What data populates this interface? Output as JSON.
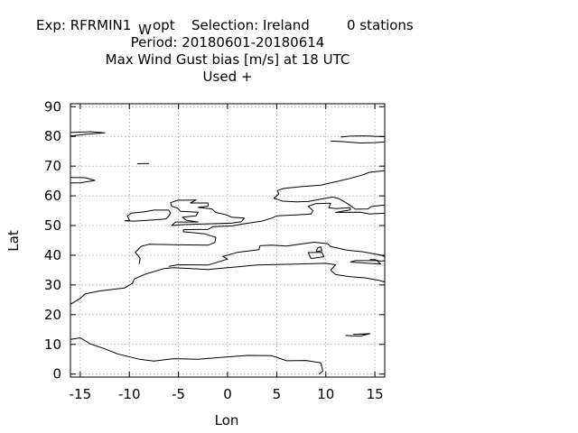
{
  "chart_data": {
    "type": "scatter",
    "title": {
      "line1": {
        "exp_prefix": "Exp: RFRMIN1",
        "exp_subscript": "W",
        "exp_suffix": "opt",
        "selection": "Selection: Ireland",
        "stations": "0 stations"
      },
      "line2": "Period: 20180601-20180614",
      "line3": "Max Wind Gust bias [m/s] at  18 UTC",
      "line4": "Used   +"
    },
    "xlabel": "Lon",
    "ylabel": "Lat",
    "xlim": [
      -16,
      16
    ],
    "ylim": [
      -1,
      91
    ],
    "x_ticks": [
      -15,
      -10,
      -5,
      0,
      5,
      10,
      15
    ],
    "y_ticks": [
      0,
      10,
      20,
      30,
      40,
      50,
      60,
      70,
      80,
      90
    ],
    "x_tick_labels": [
      "-15",
      "-10",
      "-5",
      "0",
      "5",
      "10",
      "15"
    ],
    "y_tick_labels": [
      "0",
      "10",
      "20",
      "30",
      "40",
      "50",
      "60",
      "70",
      "80",
      "90"
    ],
    "grid": true,
    "points": [],
    "coastlines": [
      [
        [
          -16,
          81.3
        ],
        [
          -14,
          81.6
        ],
        [
          -12.5,
          81.2
        ],
        [
          -14.5,
          80.7
        ],
        [
          -16,
          80.1
        ]
      ],
      [
        [
          -16,
          66.2
        ],
        [
          -14.5,
          66.1
        ],
        [
          -13.5,
          65.2
        ],
        [
          -15,
          64.4
        ],
        [
          -16,
          64.3
        ]
      ],
      [
        [
          -16,
          11.7
        ],
        [
          -15,
          12.2
        ],
        [
          -14,
          10.2
        ],
        [
          -12.5,
          8.5
        ],
        [
          -11.2,
          6.8
        ],
        [
          -9,
          5
        ],
        [
          -7.5,
          4.4
        ],
        [
          -5.5,
          5.2
        ],
        [
          -3,
          5
        ],
        [
          0,
          5.8
        ],
        [
          2,
          6.3
        ],
        [
          4.5,
          6.2
        ],
        [
          6,
          4.5
        ],
        [
          8,
          4.6
        ],
        [
          9.5,
          3.8
        ],
        [
          9.7,
          1
        ],
        [
          9.3,
          0
        ]
      ],
      [
        [
          -16,
          23.5
        ],
        [
          -15,
          25.5
        ],
        [
          -14.5,
          27
        ],
        [
          -13,
          28
        ],
        [
          -10.5,
          29
        ],
        [
          -9.7,
          30.5
        ],
        [
          -9.5,
          32
        ],
        [
          -8.5,
          33.5
        ],
        [
          -6.5,
          35.5
        ],
        [
          -5.5,
          35.8
        ],
        [
          -2,
          35.2
        ],
        [
          0,
          35.8
        ],
        [
          3,
          36.7
        ],
        [
          7,
          37
        ],
        [
          10,
          37.3
        ],
        [
          11,
          36.8
        ],
        [
          10.5,
          35
        ],
        [
          11,
          33.5
        ],
        [
          12.5,
          32.8
        ],
        [
          14,
          32.4
        ],
        [
          15.5,
          31.5
        ],
        [
          16,
          31
        ]
      ],
      [
        [
          -9,
          37
        ],
        [
          -8.9,
          39
        ],
        [
          -9.4,
          41
        ],
        [
          -8.8,
          43
        ],
        [
          -8,
          43.7
        ],
        [
          -5,
          43.5
        ],
        [
          -2,
          43.4
        ],
        [
          -1.3,
          44.3
        ],
        [
          -1.2,
          46
        ],
        [
          -2.3,
          47.2
        ],
        [
          -4.5,
          47.9
        ],
        [
          -4.5,
          48.6
        ],
        [
          -2,
          48.7
        ],
        [
          -1.5,
          49.6
        ],
        [
          0.5,
          49.9
        ],
        [
          1.5,
          50.5
        ],
        [
          2.5,
          51
        ],
        [
          3.5,
          51.5
        ],
        [
          4.5,
          52.5
        ],
        [
          5,
          53.3
        ],
        [
          7,
          53.6
        ],
        [
          8.5,
          53.9
        ],
        [
          8.7,
          55
        ],
        [
          8.2,
          56.5
        ],
        [
          9,
          57.4
        ],
        [
          10.5,
          57.5
        ],
        [
          10.3,
          56
        ],
        [
          11,
          55.7
        ],
        [
          12.5,
          56
        ],
        [
          12.5,
          55.3
        ],
        [
          11,
          54.4
        ],
        [
          13.5,
          54.5
        ],
        [
          14.5,
          53.9
        ],
        [
          16,
          54.2
        ]
      ],
      [
        [
          -6,
          36.3
        ],
        [
          -5,
          36.8
        ],
        [
          -2,
          36.7
        ],
        [
          0,
          38.7
        ],
        [
          -0.5,
          39.6
        ],
        [
          0.5,
          40.5
        ],
        [
          1,
          41
        ],
        [
          3.2,
          41.9
        ],
        [
          3.3,
          43.2
        ],
        [
          4.5,
          43.4
        ],
        [
          6,
          43.1
        ],
        [
          7.5,
          43.8
        ],
        [
          8.8,
          44.4
        ],
        [
          10.2,
          43.9
        ],
        [
          10.5,
          42.9
        ],
        [
          12.2,
          41.7
        ],
        [
          13.7,
          41.2
        ],
        [
          15.7,
          40
        ],
        [
          16,
          39.5
        ]
      ],
      [
        [
          16,
          38.2
        ],
        [
          15.6,
          38
        ],
        [
          15,
          38.5
        ],
        [
          14.5,
          38.6
        ]
      ],
      [
        [
          -10.5,
          51.6
        ],
        [
          -10,
          51.8
        ],
        [
          -10.2,
          53.2
        ],
        [
          -9.8,
          54.2
        ],
        [
          -8.5,
          54.6
        ],
        [
          -7.5,
          55.2
        ],
        [
          -6,
          55.2
        ],
        [
          -5.8,
          54.2
        ],
        [
          -6,
          53.2
        ],
        [
          -6.3,
          52.2
        ],
        [
          -8,
          51.8
        ],
        [
          -9.5,
          51.5
        ],
        [
          -10.5,
          51.6
        ]
      ],
      [
        [
          -5.7,
          50
        ],
        [
          -5.3,
          51.2
        ],
        [
          -3,
          51.2
        ],
        [
          -4.2,
          51.8
        ],
        [
          -4.6,
          52.8
        ],
        [
          -3.2,
          53.3
        ],
        [
          -3,
          54.5
        ],
        [
          -4.8,
          54.8
        ],
        [
          -5.1,
          55.9
        ],
        [
          -5.7,
          56.5
        ],
        [
          -5.8,
          57.7
        ],
        [
          -5.1,
          58.5
        ],
        [
          -3.2,
          58.6
        ],
        [
          -3.8,
          57.6
        ],
        [
          -2,
          57.6
        ],
        [
          -2,
          56.5
        ],
        [
          -3,
          56.1
        ],
        [
          -1.6,
          55.6
        ],
        [
          -1.2,
          54.4
        ],
        [
          -0.1,
          53.6
        ],
        [
          0.4,
          52.8
        ],
        [
          1.7,
          52.5
        ],
        [
          1.4,
          51.3
        ],
        [
          0.4,
          50.8
        ],
        [
          -2,
          50.6
        ],
        [
          -4.5,
          50.3
        ],
        [
          -5.7,
          50
        ]
      ],
      [
        [
          4.7,
          59.2
        ],
        [
          5.2,
          60.5
        ],
        [
          5.1,
          61.8
        ],
        [
          5.7,
          62.5
        ],
        [
          7.5,
          63.1
        ],
        [
          9.5,
          63.6
        ],
        [
          10.7,
          64.5
        ],
        [
          12.5,
          65.9
        ],
        [
          13.8,
          67.1
        ],
        [
          14.4,
          67.9
        ],
        [
          16,
          68.5
        ]
      ],
      [
        [
          4.7,
          59.2
        ],
        [
          5.6,
          58.2
        ],
        [
          7,
          58
        ],
        [
          8.2,
          58.1
        ],
        [
          9.7,
          59
        ],
        [
          10.7,
          59.6
        ],
        [
          11.3,
          59.1
        ],
        [
          12,
          57.8
        ],
        [
          12.6,
          56.5
        ],
        [
          13,
          55.5
        ],
        [
          14.3,
          55.6
        ],
        [
          14.6,
          56.4
        ],
        [
          16,
          56.9
        ]
      ],
      [
        [
          11.5,
          79.8
        ],
        [
          12.5,
          80.1
        ],
        [
          14,
          80.2
        ],
        [
          16,
          79.9
        ]
      ],
      [
        [
          10.5,
          78.5
        ],
        [
          12,
          78.2
        ],
        [
          13.5,
          77.8
        ],
        [
          15,
          77.9
        ],
        [
          16,
          78.2
        ]
      ],
      [
        [
          -8,
          70.9
        ],
        [
          -9.2,
          70.8
        ]
      ],
      [
        [
          12,
          13
        ],
        [
          13.5,
          12.8
        ],
        [
          14.5,
          13.6
        ],
        [
          12.8,
          13.4
        ]
      ],
      [
        [
          9,
          41.3
        ],
        [
          9.6,
          41.5
        ],
        [
          9.5,
          42.8
        ],
        [
          9.2,
          42.6
        ],
        [
          9,
          41.3
        ]
      ],
      [
        [
          8.5,
          38.9
        ],
        [
          9.8,
          39.5
        ],
        [
          9.6,
          41
        ],
        [
          8.2,
          40.9
        ],
        [
          8.5,
          38.9
        ]
      ],
      [
        [
          12.5,
          37.7
        ],
        [
          15.6,
          37
        ],
        [
          15.2,
          38.2
        ],
        [
          13,
          38.2
        ],
        [
          12.5,
          37.7
        ]
      ]
    ]
  }
}
